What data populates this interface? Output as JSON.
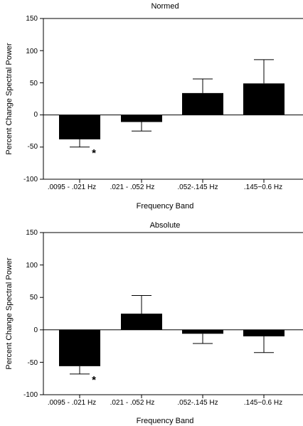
{
  "chart_data": [
    {
      "type": "bar",
      "title": "Normed",
      "xlabel": "Frequency Band",
      "ylabel": "Percent Change Spectral Power",
      "categories": [
        ".0095 - .021 Hz",
        ".021 - .052 Hz",
        ".052-.145 Hz",
        ".145−0.6 Hz"
      ],
      "values": [
        -38,
        -11,
        34,
        49
      ],
      "error_bars": [
        12,
        14,
        22,
        37
      ],
      "significance": [
        "*",
        "",
        "",
        ""
      ],
      "ylim": [
        -100,
        150
      ],
      "yticks": [
        "-100",
        "-50",
        "0",
        "50",
        "100",
        "150"
      ],
      "bar_color": "#000000",
      "grid": false
    },
    {
      "type": "bar",
      "title": "Absolute",
      "xlabel": "Frequency Band",
      "ylabel": "Percent Change Spectral Power",
      "categories": [
        ".0095 - .021 Hz",
        ".021 - .052 Hz",
        ".052-.145 Hz",
        ".145−0.6 Hz"
      ],
      "values": [
        -56,
        25,
        -6,
        -10
      ],
      "error_bars": [
        12,
        28,
        15,
        25
      ],
      "significance": [
        "*",
        "",
        "",
        ""
      ],
      "ylim": [
        -100,
        150
      ],
      "yticks": [
        "-100",
        "-50",
        "0",
        "50",
        "100",
        "150"
      ],
      "bar_color": "#000000",
      "grid": false
    }
  ]
}
